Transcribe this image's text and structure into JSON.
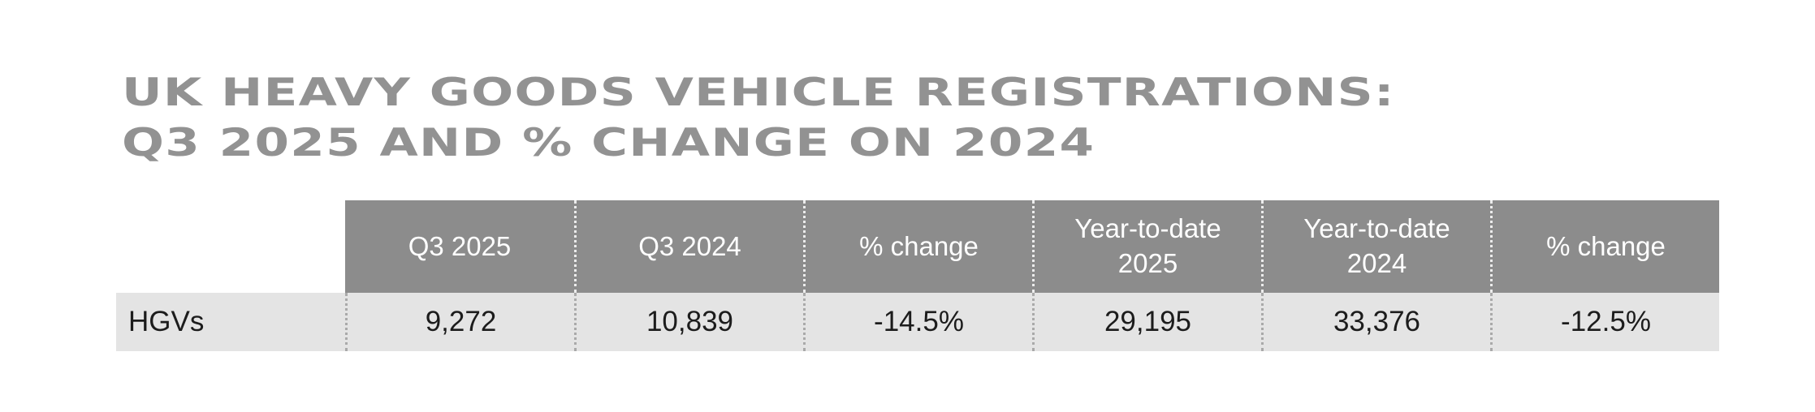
{
  "title": {
    "line1": "UK HEAVY GOODS VEHICLE REGISTRATIONS:",
    "line2": "Q3 2025 AND % CHANGE ON 2024",
    "color": "#929292"
  },
  "table": {
    "header_bg": "#8c8c8c",
    "header_text_color": "#ffffff",
    "row_bg": "#e4e4e4",
    "row_text_color": "#1c1c1c",
    "columns": [
      "",
      "Q3 2025",
      "Q3 2024",
      "% change",
      "Year-to-date 2025",
      "Year-to-date 2024",
      "% change"
    ],
    "rows": [
      {
        "label": "HGVs",
        "values": [
          "9,272",
          "10,839",
          "-14.5%",
          "29,195",
          "33,376",
          "-12.5%"
        ]
      }
    ]
  },
  "chart_data": {
    "type": "table",
    "title": "UK heavy goods vehicle registrations: Q3 2025 and % change on 2024",
    "columns": [
      "Q3 2025",
      "Q3 2024",
      "% change",
      "Year-to-date 2025",
      "Year-to-date 2024",
      "% change"
    ],
    "rows": [
      {
        "category": "HGVs",
        "q3_2025": 9272,
        "q3_2024": 10839,
        "q3_pct_change": -14.5,
        "ytd_2025": 29195,
        "ytd_2024": 33376,
        "ytd_pct_change": -12.5
      }
    ]
  }
}
